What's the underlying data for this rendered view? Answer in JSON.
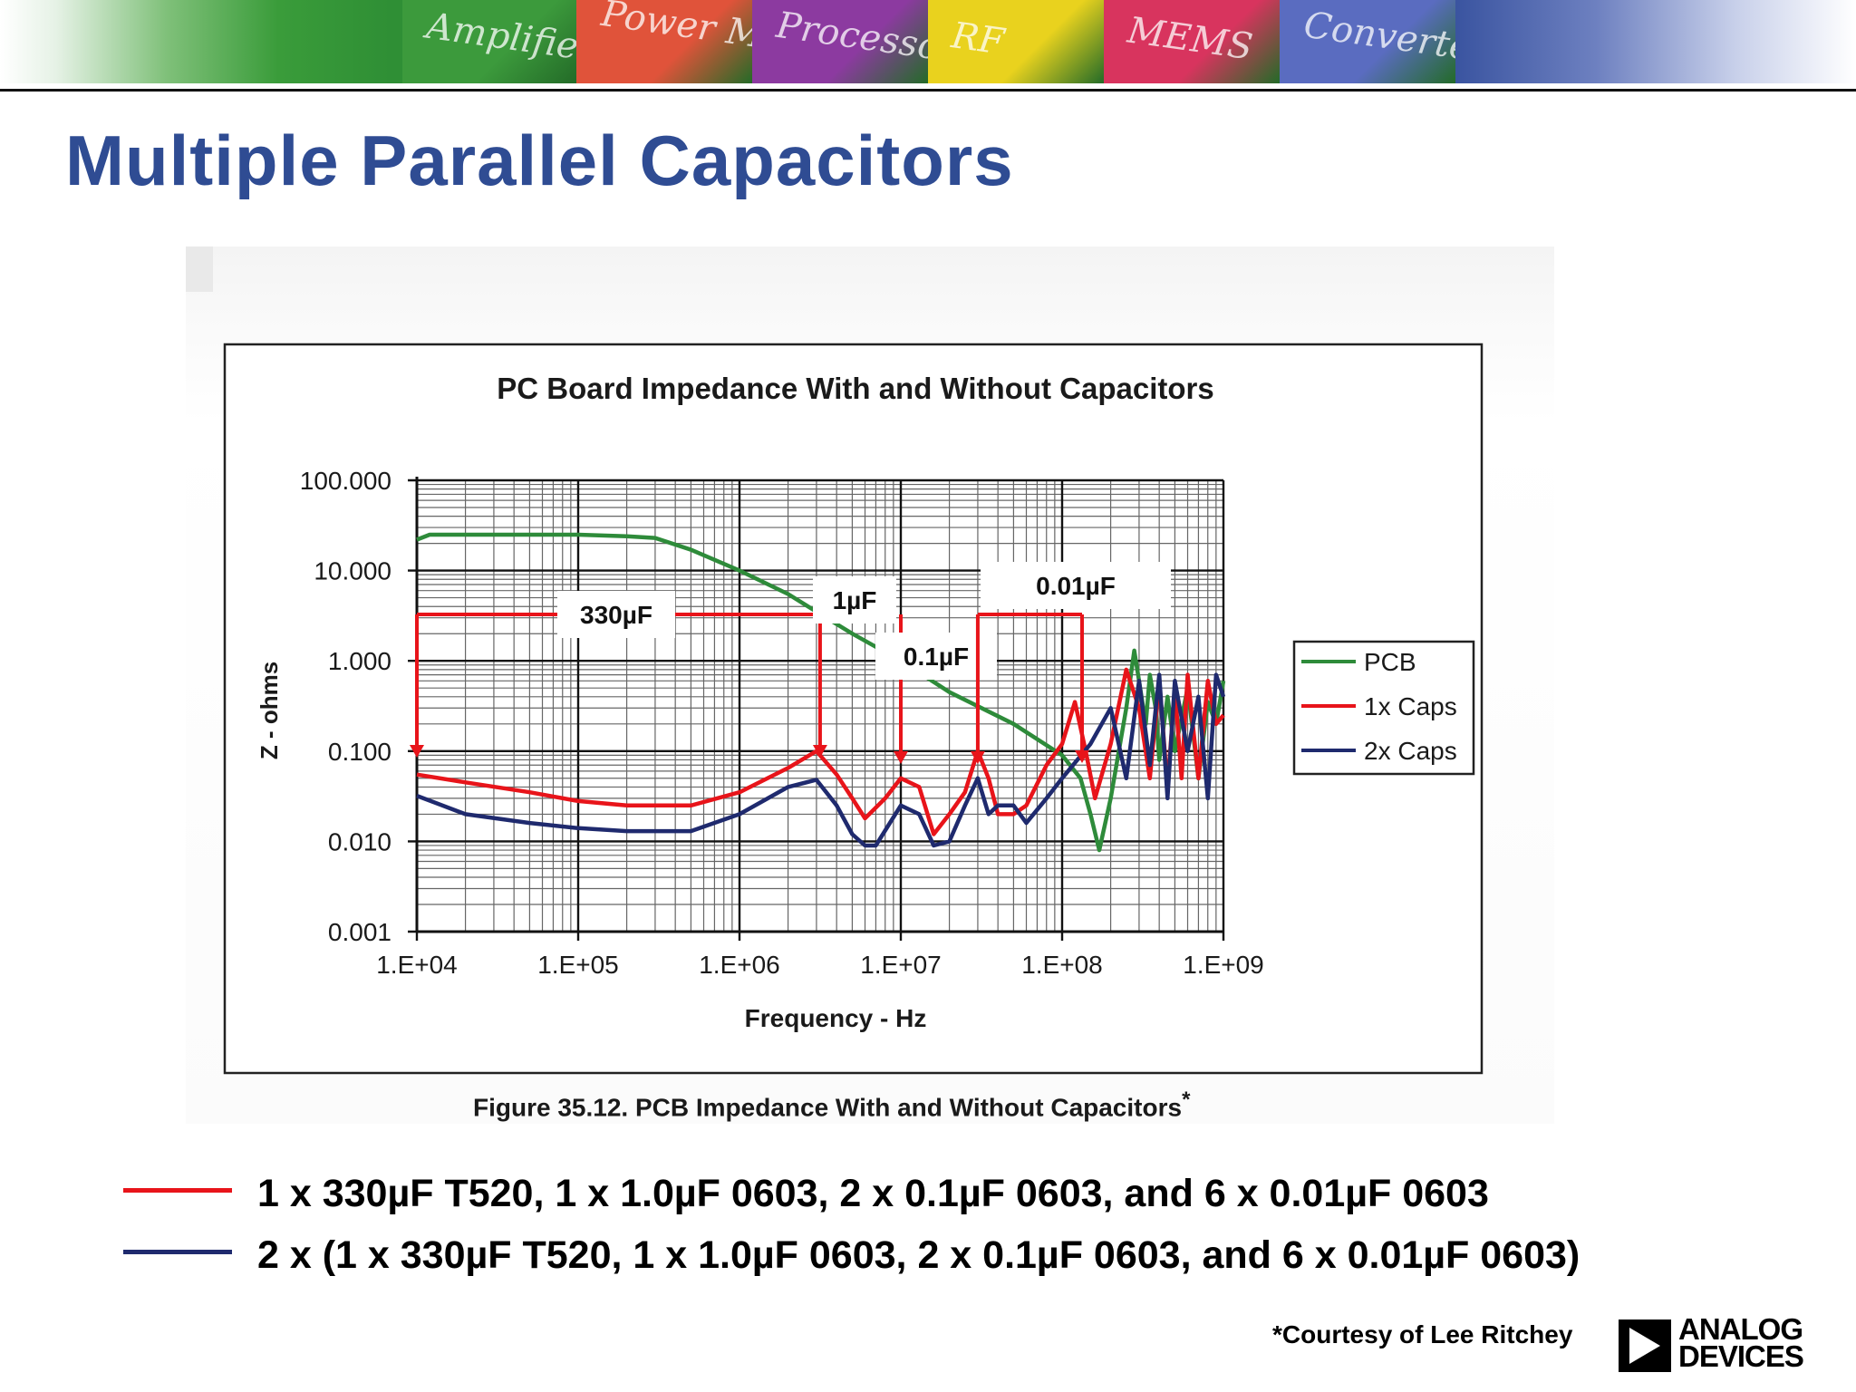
{
  "banner": {
    "tiles": [
      {
        "label": "Amplifiers",
        "color": "#3c9a3c"
      },
      {
        "label": "Power Management",
        "color": "#e0533a"
      },
      {
        "label": "Processors",
        "color": "#8c3aa0"
      },
      {
        "label": "RF",
        "color": "#e9d21e"
      },
      {
        "label": "MEMS",
        "color": "#d8345e"
      },
      {
        "label": "Converters",
        "color": "#5a6cc0"
      }
    ]
  },
  "slide": {
    "title": "Multiple Parallel Capacitors",
    "title_color": "#2f4c93",
    "figure_caption": "Figure 35.12.  PCB Impedance With and Without Capacitors",
    "figure_caption_mark": "*",
    "courtesy": "*Courtesy of Lee Ritchey",
    "logo": {
      "line1": "ANALOG",
      "line2": "DEVICES"
    }
  },
  "bottom_legend": [
    {
      "text": "1 x 330µF T520, 1 x 1.0µF 0603, 2 x 0.1µF 0603, and 6 x 0.01µF 0603",
      "color": "#e8141a"
    },
    {
      "text": "2 x (1 x 330µF T520, 1 x 1.0µF 0603, 2 x 0.1µF 0603, and 6 x 0.01µF 0603)",
      "color": "#1f2a6e"
    }
  ],
  "chart_data": {
    "type": "line",
    "title": "PC Board Impedance With and Without Capacitors",
    "xlabel": "Frequency - Hz",
    "ylabel": "Z - ohms",
    "x_scale": "log",
    "y_scale": "log",
    "xlim": [
      10000,
      1000000000
    ],
    "ylim": [
      0.001,
      100
    ],
    "x_ticks": [
      "1.E+04",
      "1.E+05",
      "1.E+06",
      "1.E+07",
      "1.E+08",
      "1.E+09"
    ],
    "y_ticks": [
      "100.000",
      "10.000",
      "1.000",
      "0.100",
      "0.010",
      "0.001"
    ],
    "grid": true,
    "legend_position": "right",
    "series": [
      {
        "name": "PCB",
        "color": "#2e8b3a",
        "x": [
          10000,
          12000,
          30000,
          100000,
          200000,
          300000,
          500000,
          1000000,
          2000000,
          3000000,
          5000000,
          10000000,
          20000000,
          50000000,
          100000000,
          130000000,
          150000000,
          170000000,
          200000000,
          250000000,
          280000000,
          300000000,
          330000000,
          350000000,
          380000000,
          400000000,
          450000000,
          500000000,
          600000000,
          700000000,
          800000000,
          900000000,
          1000000000
        ],
        "y": [
          22,
          25,
          25,
          25,
          24,
          23,
          17,
          10,
          5.5,
          3.5,
          2,
          1.0,
          0.45,
          0.2,
          0.09,
          0.05,
          0.02,
          0.008,
          0.03,
          0.3,
          1.3,
          0.6,
          0.2,
          0.7,
          0.3,
          0.08,
          0.4,
          0.1,
          0.5,
          0.05,
          0.35,
          0.2,
          0.6
        ]
      },
      {
        "name": "1x Caps",
        "color": "#e8141a",
        "x": [
          10000,
          20000,
          50000,
          100000,
          200000,
          500000,
          1000000,
          2000000,
          3000000,
          4000000,
          5000000,
          6000000,
          8000000,
          10000000,
          13000000,
          16000000,
          20000000,
          25000000,
          30000000,
          35000000,
          40000000,
          50000000,
          60000000,
          80000000,
          100000000,
          120000000,
          140000000,
          160000000,
          200000000,
          250000000,
          300000000,
          350000000,
          400000000,
          450000000,
          500000000,
          550000000,
          600000000,
          700000000,
          800000000,
          900000000,
          1000000000
        ],
        "y": [
          0.055,
          0.045,
          0.035,
          0.028,
          0.025,
          0.025,
          0.035,
          0.065,
          0.1,
          0.055,
          0.03,
          0.018,
          0.03,
          0.05,
          0.04,
          0.012,
          0.02,
          0.035,
          0.1,
          0.05,
          0.02,
          0.02,
          0.025,
          0.07,
          0.12,
          0.35,
          0.1,
          0.03,
          0.12,
          0.8,
          0.3,
          0.05,
          0.6,
          0.04,
          0.5,
          0.05,
          0.7,
          0.05,
          0.6,
          0.2,
          0.25
        ]
      },
      {
        "name": "2x Caps",
        "color": "#1f2a6e",
        "x": [
          10000,
          20000,
          50000,
          100000,
          200000,
          500000,
          1000000,
          2000000,
          3000000,
          4000000,
          5000000,
          6000000,
          7000000,
          10000000,
          13000000,
          16000000,
          20000000,
          25000000,
          30000000,
          35000000,
          40000000,
          50000000,
          60000000,
          80000000,
          100000000,
          150000000,
          200000000,
          250000000,
          300000000,
          350000000,
          400000000,
          450000000,
          500000000,
          600000000,
          700000000,
          800000000,
          900000000,
          1000000000
        ],
        "y": [
          0.032,
          0.02,
          0.016,
          0.014,
          0.013,
          0.013,
          0.02,
          0.04,
          0.048,
          0.025,
          0.012,
          0.009,
          0.009,
          0.025,
          0.02,
          0.009,
          0.01,
          0.025,
          0.05,
          0.02,
          0.025,
          0.025,
          0.016,
          0.03,
          0.05,
          0.12,
          0.3,
          0.05,
          0.6,
          0.07,
          0.7,
          0.03,
          0.6,
          0.1,
          0.4,
          0.03,
          0.7,
          0.4
        ]
      }
    ],
    "annotations": [
      {
        "label": "330µF",
        "x": 10000
      },
      {
        "label": "1µF",
        "x": 3000000
      },
      {
        "label": "0.1µF",
        "x": 10000000
      },
      {
        "label": "0.01µF",
        "x": 30000000
      }
    ]
  }
}
